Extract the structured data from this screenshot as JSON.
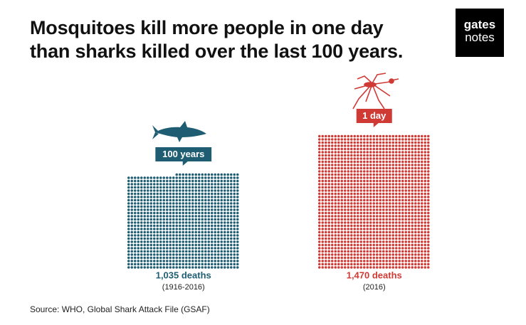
{
  "chart_data": {
    "type": "dots",
    "title": [
      "Mosquitoes kill more people in one day",
      "than sharks killed over the last 100 years."
    ],
    "logo": [
      "gates",
      "notes"
    ],
    "source": "Source: WHO, Global Shark Attack File (GSAF)",
    "series": [
      {
        "name": "100 years",
        "color": "#1f5d73",
        "values": [
          1035
        ],
        "value_labels": [
          "1,035 deaths"
        ],
        "note": "(1916-2016)"
      },
      {
        "name": "1 day",
        "color": "#d03a35",
        "values": [
          1470
        ],
        "value_labels": [
          "1,470 deaths"
        ],
        "note": "(2016)"
      }
    ]
  }
}
